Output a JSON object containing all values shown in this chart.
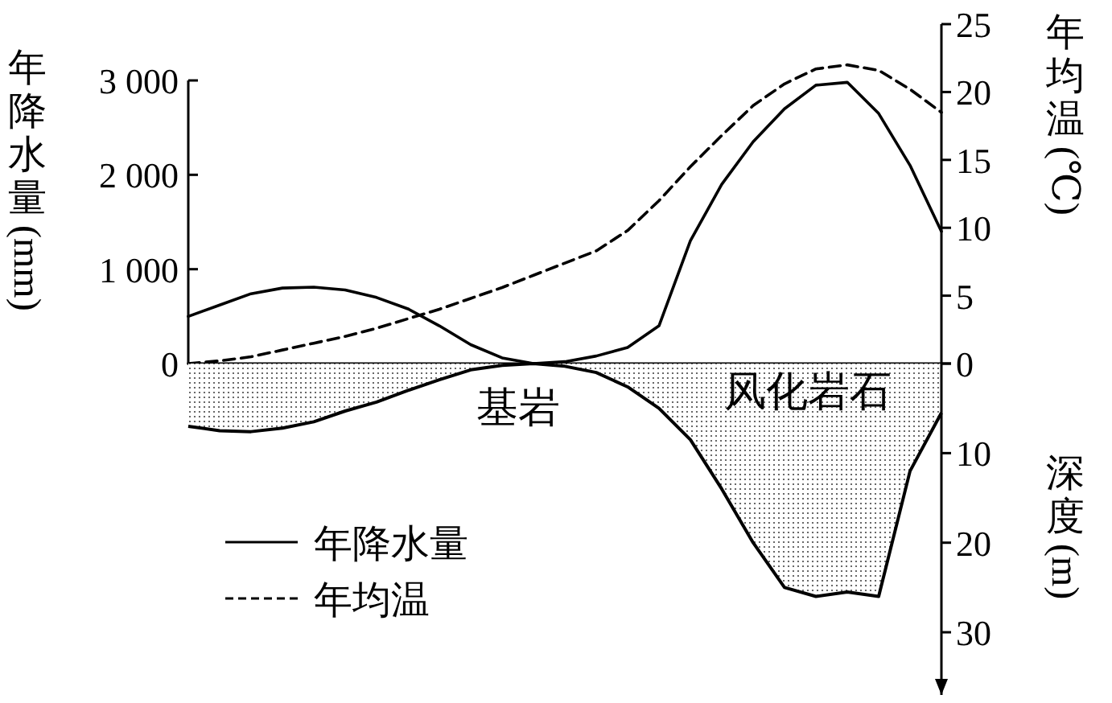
{
  "chart_data": [
    {
      "type": "line",
      "categories": [
        null,
        null,
        null,
        null,
        null,
        null,
        null,
        null,
        null,
        null,
        null,
        null,
        null,
        null,
        null,
        null,
        null,
        null,
        null,
        null,
        null,
        null,
        null,
        null,
        null
      ],
      "series": [
        {
          "name": "年降水量",
          "color": "#000000",
          "line_style": "solid",
          "values": [
            500,
            620,
            740,
            800,
            810,
            780,
            700,
            580,
            400,
            200,
            60,
            0,
            20,
            80,
            170,
            400,
            1300,
            1900,
            2350,
            2700,
            2950,
            2980,
            2650,
            2100,
            1400
          ]
        },
        {
          "name": "年均温",
          "color": "#000000",
          "line_style": "dashed",
          "axis": "y2",
          "values": [
            0,
            0.2,
            0.5,
            1.0,
            1.5,
            2.0,
            2.6,
            3.3,
            4.0,
            4.8,
            5.6,
            6.5,
            7.4,
            8.3,
            9.8,
            12.0,
            14.5,
            16.8,
            19.0,
            20.6,
            21.7,
            22.0,
            21.6,
            20.2,
            18.5
          ]
        }
      ],
      "ylabel": "年降水量(mm)",
      "y2label": "年均温(℃)",
      "ylim": [
        0,
        3000
      ],
      "yticks": [
        0,
        {
          "value": 1000,
          "label": "1 000"
        },
        {
          "value": 2000,
          "label": "2 000"
        },
        {
          "value": 3000,
          "label": "3 000"
        }
      ],
      "y2lim": [
        0,
        25
      ],
      "y2ticks": [
        0,
        5,
        10,
        15,
        20,
        25
      ],
      "legend": "bottom left",
      "grid": false
    },
    {
      "type": "area",
      "categories": [
        null,
        null,
        null,
        null,
        null,
        null,
        null,
        null,
        null,
        null,
        null,
        null,
        null,
        null,
        null,
        null,
        null,
        null,
        null,
        null,
        null,
        null,
        null,
        null,
        null
      ],
      "series": [
        {
          "color": "#444444",
          "values": [
            7,
            7.5,
            7.6,
            7.2,
            6.5,
            5.3,
            4.3,
            3.0,
            1.8,
            0.7,
            0.2,
            0,
            0.3,
            1.0,
            2.6,
            5,
            8.5,
            14,
            20,
            25,
            26,
            25.5,
            26,
            12,
            5.5
          ]
        }
      ],
      "ylabel": "深度(m)",
      "ylim": [
        37,
        0
      ],
      "yticks": [
        {
          "value": 0,
          "label": null
        },
        10,
        20,
        30
      ],
      "annotations": [
        "基岩",
        "风化岩石"
      ],
      "grid": false
    }
  ]
}
